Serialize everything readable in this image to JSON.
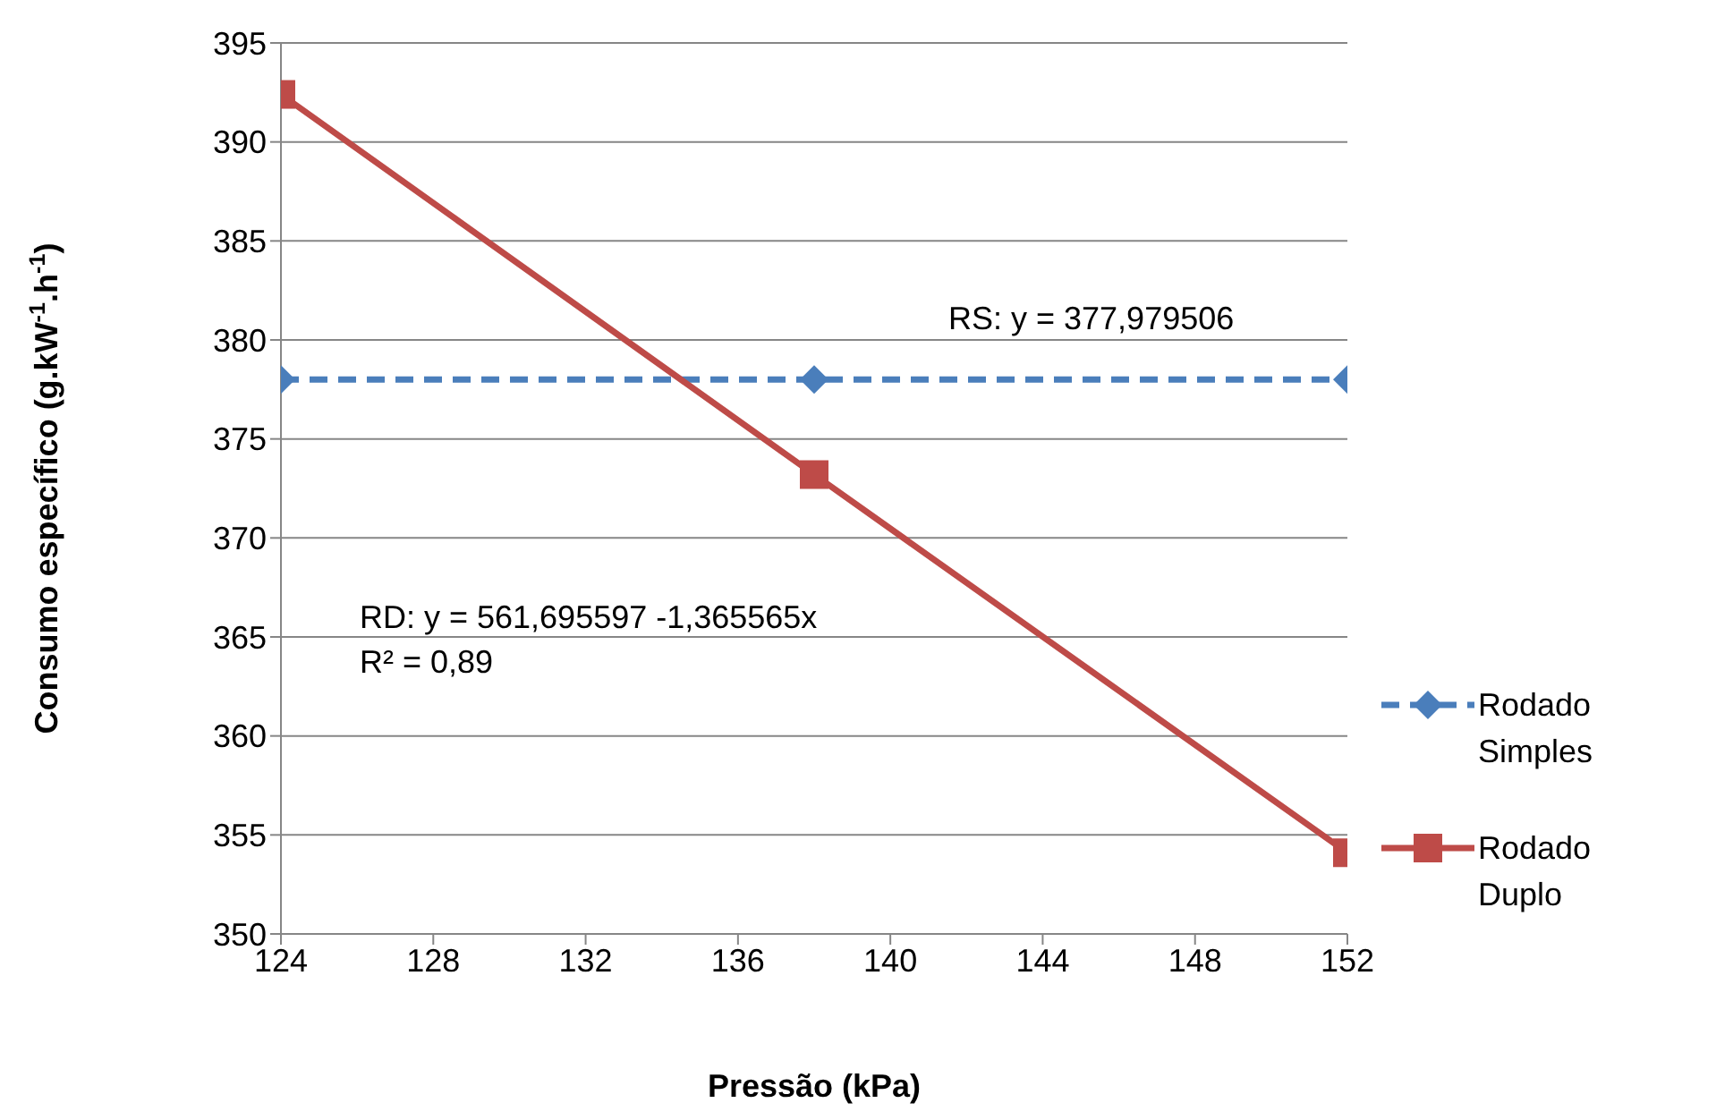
{
  "chart_data": {
    "type": "line",
    "xlabel": "Pressão (kPa)",
    "ylabel": "Consumo específico (g.kW$^{-1}$.h$^{-1}$)",
    "x": [
      124,
      138,
      152
    ],
    "series": [
      {
        "name": "Rodado Simples",
        "color": "#4a7ebb",
        "values": [
          378,
          378,
          378
        ],
        "marker": "diamond",
        "line_style": "dashed"
      },
      {
        "name": "Rodado Duplo",
        "color": "#be4b48",
        "values": [
          392.4,
          373.2,
          354.1
        ],
        "marker": "square",
        "line_style": "solid"
      }
    ],
    "xlim": [
      124,
      152
    ],
    "xticks": [
      124,
      128,
      132,
      136,
      140,
      144,
      148,
      152
    ],
    "ylim": [
      350,
      395
    ],
    "yticks": [
      350,
      355,
      360,
      365,
      370,
      375,
      380,
      385,
      390,
      395
    ],
    "grid": "y",
    "legend": "right",
    "annotations": [
      "RS: y = 377,979506",
      "RD: y = 561,695597 -1,365565x",
      "R² = 0,89"
    ]
  }
}
